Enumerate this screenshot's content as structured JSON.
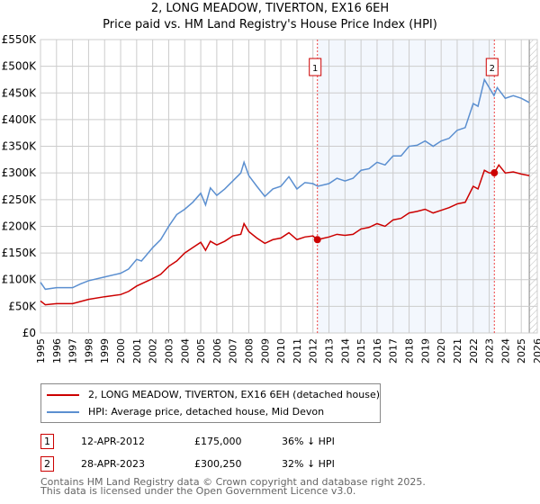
{
  "chart_data": {
    "type": "line",
    "title": "2, LONG MEADOW, TIVERTON, EX16 6EH",
    "subtitle": "Price paid vs. HM Land Registry's House Price Index (HPI)",
    "xlim": [
      1995,
      2026
    ],
    "ylim": [
      0,
      550000
    ],
    "x_ticks": [
      "1995",
      "1996",
      "1997",
      "1998",
      "1999",
      "2000",
      "2001",
      "2002",
      "2003",
      "2004",
      "2005",
      "2006",
      "2007",
      "2008",
      "2009",
      "2010",
      "2011",
      "2012",
      "2013",
      "2014",
      "2015",
      "2016",
      "2017",
      "2018",
      "2019",
      "2020",
      "2021",
      "2022",
      "2023",
      "2024",
      "2025",
      "2026"
    ],
    "y_ticks": [
      {
        "v": 0,
        "l": "£0"
      },
      {
        "v": 50000,
        "l": "£50K"
      },
      {
        "v": 100000,
        "l": "£100K"
      },
      {
        "v": 150000,
        "l": "£150K"
      },
      {
        "v": 200000,
        "l": "£200K"
      },
      {
        "v": 250000,
        "l": "£250K"
      },
      {
        "v": 300000,
        "l": "£300K"
      },
      {
        "v": 350000,
        "l": "£350K"
      },
      {
        "v": 400000,
        "l": "£400K"
      },
      {
        "v": 450000,
        "l": "£450K"
      },
      {
        "v": 500000,
        "l": "£500K"
      },
      {
        "v": 550000,
        "l": "£550K"
      }
    ],
    "grid": true,
    "shaded_range": [
      2012.28,
      2023.32
    ],
    "hatched_from": 2025.5,
    "series": [
      {
        "name": "2, LONG MEADOW, TIVERTON, EX16 6EH (detached house)",
        "color": "#cc0000",
        "x": [
          1995,
          1995.3,
          1996,
          1997,
          1998,
          1999,
          2000,
          2000.5,
          2001,
          2002,
          2002.5,
          2003,
          2003.5,
          2004,
          2004.5,
          2005,
          2005.3,
          2005.6,
          2006,
          2006.5,
          2007,
          2007.5,
          2007.7,
          2008,
          2008.5,
          2009,
          2009.5,
          2010,
          2010.5,
          2011,
          2011.5,
          2012,
          2012.28,
          2013,
          2013.5,
          2014,
          2014.5,
          2015,
          2015.5,
          2016,
          2016.5,
          2017,
          2017.5,
          2018,
          2018.5,
          2019,
          2019.5,
          2020,
          2020.5,
          2021,
          2021.5,
          2022,
          2022.3,
          2022.7,
          2023,
          2023.32,
          2023.6,
          2024,
          2024.5,
          2025,
          2025.5
        ],
        "y": [
          60,
          53,
          55,
          55,
          63,
          68,
          72,
          78,
          88,
          102,
          110,
          125,
          135,
          150,
          160,
          170,
          155,
          172,
          165,
          172,
          182,
          185,
          205,
          190,
          178,
          168,
          175,
          178,
          188,
          175,
          180,
          182,
          175,
          180,
          185,
          183,
          185,
          195,
          198,
          205,
          200,
          212,
          215,
          225,
          228,
          232,
          225,
          230,
          235,
          242,
          245,
          275,
          270,
          305,
          300,
          300.25,
          315,
          300,
          302,
          298,
          295
        ]
      },
      {
        "name": "HPI: Average price, detached house, Mid Devon",
        "color": "#5b8fd0",
        "x": [
          1995,
          1995.3,
          1996,
          1997,
          1997.5,
          1998,
          1999,
          2000,
          2000.5,
          2001,
          2001.3,
          2002,
          2002.5,
          2003,
          2003.5,
          2004,
          2004.5,
          2005,
          2005.3,
          2005.6,
          2006,
          2006.5,
          2007,
          2007.5,
          2007.7,
          2008,
          2008.5,
          2009,
          2009.5,
          2010,
          2010.5,
          2011,
          2011.5,
          2012,
          2012.3,
          2013,
          2013.5,
          2014,
          2014.5,
          2015,
          2015.5,
          2016,
          2016.5,
          2017,
          2017.5,
          2018,
          2018.5,
          2019,
          2019.5,
          2020,
          2020.5,
          2021,
          2021.5,
          2022,
          2022.3,
          2022.7,
          2023,
          2023.3,
          2023.5,
          2024,
          2024.5,
          2025,
          2025.5
        ],
        "y": [
          95,
          82,
          85,
          85,
          92,
          98,
          105,
          112,
          120,
          138,
          135,
          160,
          175,
          200,
          222,
          232,
          245,
          262,
          240,
          272,
          258,
          270,
          285,
          300,
          320,
          295,
          275,
          256,
          270,
          275,
          293,
          270,
          282,
          280,
          275,
          280,
          290,
          285,
          290,
          305,
          308,
          320,
          315,
          332,
          332,
          350,
          352,
          360,
          350,
          360,
          365,
          380,
          385,
          430,
          425,
          475,
          460,
          445,
          460,
          440,
          445,
          440,
          432
        ]
      }
    ],
    "y_unit": 1000,
    "sales": [
      {
        "label": "1",
        "x": 2012.28,
        "y": 175,
        "date": "12-APR-2012",
        "price": "£175,000",
        "hpi": "36% ↓ HPI"
      },
      {
        "label": "2",
        "x": 2023.32,
        "y": 300.25,
        "date": "28-APR-2023",
        "price": "£300,250",
        "hpi": "32% ↓ HPI"
      }
    ]
  },
  "footer": {
    "line1": "Contains HM Land Registry data © Crown copyright and database right 2025.",
    "line2": "This data is licensed under the Open Government Licence v3.0."
  }
}
